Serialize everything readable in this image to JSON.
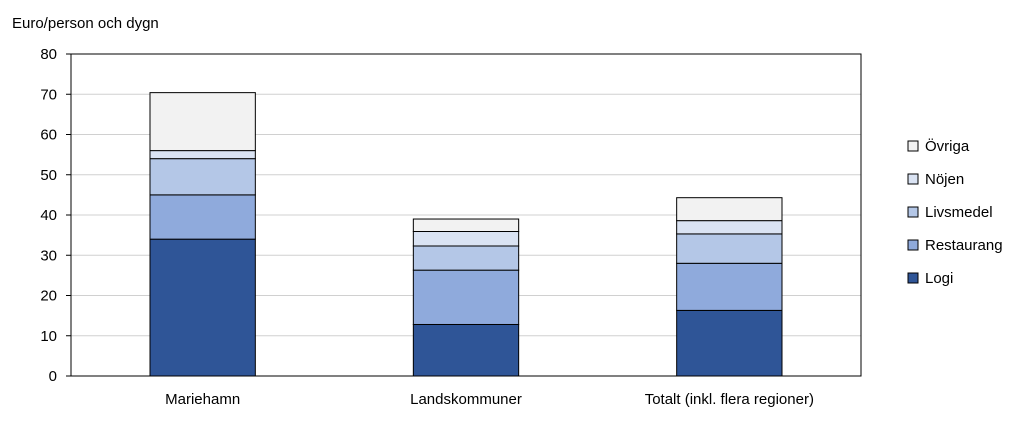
{
  "chart_data": {
    "type": "bar",
    "stacked": true,
    "title": "",
    "ylabel": "Euro/person och dygn",
    "xlabel": "",
    "ylim": [
      0,
      80
    ],
    "yticks": [
      0,
      10,
      20,
      30,
      40,
      50,
      60,
      70,
      80
    ],
    "grid": true,
    "legend_position": "right",
    "categories": [
      "Mariehamn",
      "Landskommuner",
      "Totalt (inkl. flera regioner)"
    ],
    "series": [
      {
        "name": "Logi",
        "color": "#2f5597",
        "values": [
          34.0,
          12.8,
          16.3
        ]
      },
      {
        "name": "Restaurang",
        "color": "#8faadc",
        "values": [
          11.0,
          13.5,
          11.7
        ]
      },
      {
        "name": "Livsmedel",
        "color": "#b4c7e7",
        "values": [
          9.0,
          6.0,
          7.3
        ]
      },
      {
        "name": "Nöjen",
        "color": "#dae3f3",
        "values": [
          2.0,
          3.6,
          3.3
        ]
      },
      {
        "name": "Övriga",
        "color": "#f2f2f2",
        "values": [
          14.4,
          3.1,
          5.7
        ]
      }
    ]
  }
}
